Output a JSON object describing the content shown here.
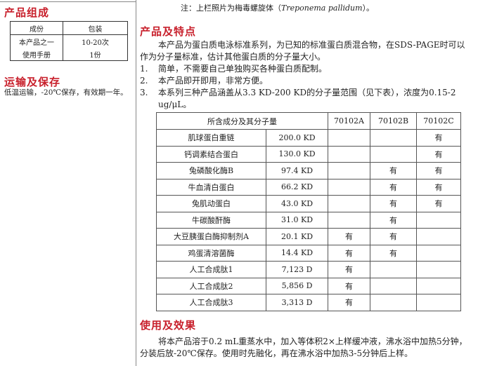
{
  "left": {
    "composition_title": "产品组成",
    "composition_table": {
      "headers": [
        "成份",
        "包装"
      ],
      "rows": [
        [
          "本产品之一",
          "10-20次"
        ],
        [
          "使用手册",
          "1份"
        ]
      ]
    },
    "storage_title": "运输及保存",
    "storage_text": "低温运输，-20℃保存，有效期一年。"
  },
  "right": {
    "note_prefix": "注：上栏照片为梅毒螺旋体（",
    "note_italic": "Treponema pallidum",
    "note_suffix": "）。",
    "features_title": "产品及特点",
    "intro": "本产品为蛋白质电泳标准系列，为已知的标准蛋白质混合物，在SDS-PAGE时可以作为分子量标准，估计其他蛋白质的分子量大小。",
    "features": [
      {
        "num": "1.",
        "text": "简单，不需要自己单独购买各种蛋白质配制。"
      },
      {
        "num": "2.",
        "text": "本产品即开即用，非常方便。"
      },
      {
        "num": "3.",
        "text": "本系列三种产品涵盖从3.3 KD-200 KD的分子量范围（见下表），浓度为0.15-2 ug/μL。"
      }
    ],
    "table": {
      "headers": [
        "所含成分及其分子量",
        "70102A",
        "70102B",
        "70102C"
      ],
      "rows": [
        [
          "肌球蛋白重链",
          "200.0 KD",
          "",
          "",
          "有"
        ],
        [
          "钙调素结合蛋白",
          "130.0 KD",
          "",
          "",
          "有"
        ],
        [
          "兔磷酸化酶B",
          "97.4 KD",
          "",
          "有",
          "有"
        ],
        [
          "牛血清白蛋白",
          "66.2 KD",
          "",
          "有",
          "有"
        ],
        [
          "兔肌动蛋白",
          "43.0 KD",
          "",
          "有",
          "有"
        ],
        [
          "牛碳酸酐酶",
          "31.0 KD",
          "",
          "有",
          ""
        ],
        [
          "大豆胰蛋白酶抑制剂A",
          "20.1 KD",
          "有",
          "有",
          ""
        ],
        [
          "鸡蛋清溶菌酶",
          "14.4 KD",
          "有",
          "有",
          ""
        ],
        [
          "人工合成肽1",
          "7,123 D",
          "有",
          "",
          ""
        ],
        [
          "人工合成肽2",
          "5,856 D",
          "有",
          "",
          ""
        ],
        [
          "人工合成肽3",
          "3,313 D",
          "有",
          "",
          ""
        ]
      ]
    },
    "usage_title": "使用及效果",
    "usage_text": "将本产品溶于0.2 mL重蒸水中，加入等体积2×上样缓冲液，沸水浴中加热5分钟，分装后放-20℃保存。使用时先融化，再在沸水浴中加热3-5分钟后上样。"
  },
  "colors": {
    "heading": "#c8202c"
  }
}
